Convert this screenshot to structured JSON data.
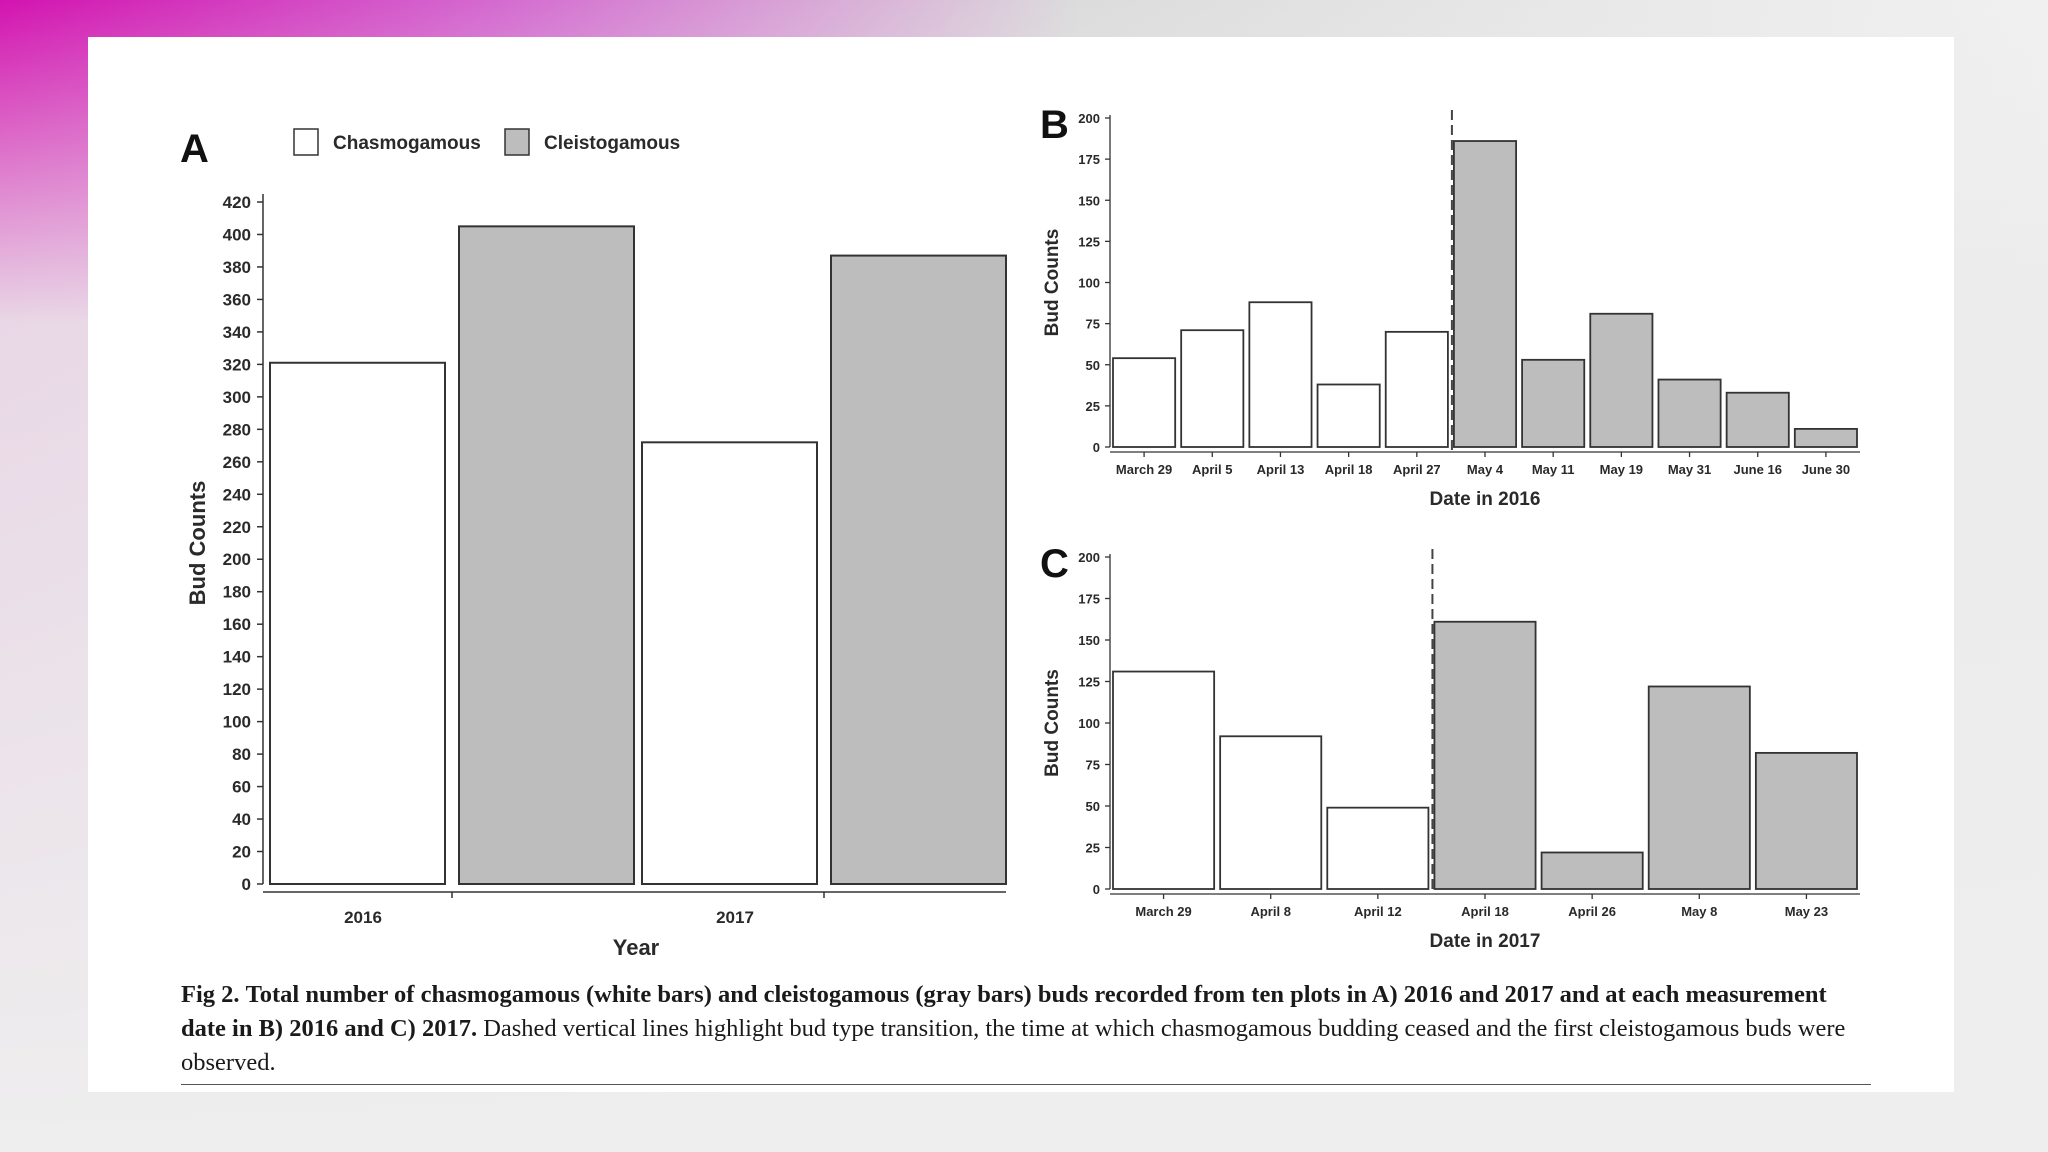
{
  "legend": {
    "items": [
      {
        "label": "Chasmogamous",
        "color": "#ffffff"
      },
      {
        "label": "Cleistogamous",
        "color": "#bdbdbd"
      }
    ]
  },
  "caption": {
    "figure_label": "Fig 2.",
    "bold_text": "Total number of chasmogamous (white bars) and cleistogamous (gray bars) buds recorded from ten plots in A) 2016 and 2017 and at each measurement date in B) 2016 and C) 2017.",
    "plain_text": "Dashed vertical lines highlight bud type transition, the time at which chasmogamous budding ceased and the first cleistogamous buds were observed."
  },
  "chart_data": [
    {
      "panel": "A",
      "type": "bar",
      "xlabel": "Year",
      "ylabel": "Bud Counts",
      "categories": [
        "2016",
        "2017"
      ],
      "series": [
        {
          "name": "Chasmogamous",
          "color": "#ffffff",
          "values": [
            321,
            272
          ]
        },
        {
          "name": "Cleistogamous",
          "color": "#bdbdbd",
          "values": [
            405,
            387
          ]
        }
      ],
      "ylim": [
        0,
        420
      ],
      "yticks": [
        0,
        20,
        40,
        60,
        80,
        100,
        120,
        140,
        160,
        180,
        200,
        220,
        240,
        260,
        280,
        300,
        320,
        340,
        360,
        380,
        400,
        420
      ],
      "grid": false,
      "legend": "top-left"
    },
    {
      "panel": "B",
      "type": "bar",
      "xlabel": "Date in 2016",
      "ylabel": "Bud Counts",
      "categories": [
        "March 29",
        "April 5",
        "April 13",
        "April 18",
        "April 27",
        "May 4",
        "May 11",
        "May 19",
        "May 31",
        "June 16",
        "June 30"
      ],
      "values": [
        54,
        71,
        88,
        38,
        70,
        186,
        53,
        81,
        41,
        33,
        11
      ],
      "bar_types": [
        "Chasmogamous",
        "Chasmogamous",
        "Chasmogamous",
        "Chasmogamous",
        "Chasmogamous",
        "Cleistogamous",
        "Cleistogamous",
        "Cleistogamous",
        "Cleistogamous",
        "Cleistogamous",
        "Cleistogamous"
      ],
      "transition_between": [
        "April 27",
        "May 4"
      ],
      "ylim": [
        0,
        200
      ],
      "yticks": [
        0,
        25,
        50,
        75,
        100,
        125,
        150,
        175,
        200
      ],
      "grid": false
    },
    {
      "panel": "C",
      "type": "bar",
      "xlabel": "Date in 2017",
      "ylabel": "Bud Counts",
      "categories": [
        "March 29",
        "April 8",
        "April 12",
        "April 18",
        "April 26",
        "May 8",
        "May 23"
      ],
      "values": [
        131,
        92,
        49,
        161,
        22,
        122,
        82
      ],
      "bar_types": [
        "Chasmogamous",
        "Chasmogamous",
        "Chasmogamous",
        "Cleistogamous",
        "Cleistogamous",
        "Cleistogamous",
        "Cleistogamous"
      ],
      "transition_between": [
        "April 12",
        "April 18"
      ],
      "ylim": [
        0,
        200
      ],
      "yticks": [
        0,
        25,
        50,
        75,
        100,
        125,
        150,
        175,
        200
      ],
      "grid": false
    }
  ]
}
